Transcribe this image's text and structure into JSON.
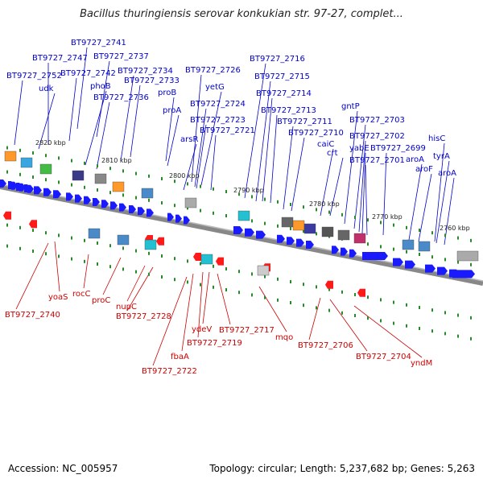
{
  "title": "Bacillus thuringiensis serovar konkukian str. 97-27, complet...",
  "footer": {
    "accession": "Accession: NC_005957",
    "topology": "Topology: circular; Length: 5,237,682 bp; Genes: 5,263"
  },
  "colors": {
    "forward": "#0000cc",
    "reverse": "#cc0000",
    "axis": "#888888",
    "gene_blue": "#1a1aff",
    "gene_red": "#ff1a1a",
    "tick": "#2a8a2a"
  },
  "kbp_labels": [
    "2820 kbp",
    "2810 kbp",
    "2800 kbp",
    "2790 kbp",
    "2780 kbp",
    "2770 kbp",
    "2760 kbp"
  ],
  "forward_labels": [
    "BT9727_2741",
    "BT9727_2747",
    "BT9727_2737",
    "BT9727_2752",
    "BT9727_2742",
    "BT9727_2734",
    "udk",
    "phoB",
    "BT9727_2733",
    "BT9727_2736",
    "proB",
    "proA",
    "BT9727_2726",
    "yetG",
    "BT9727_2724",
    "BT9727_2723",
    "BT9727_2721",
    "arsR",
    "BT9727_2716",
    "BT9727_2715",
    "BT9727_2714",
    "BT9727_2713",
    "BT9727_2711",
    "BT9727_2710",
    "caiC",
    "crt",
    "gntP",
    "BT9727_2703",
    "BT9727_2702",
    "yabE",
    "BT9727_2699",
    "BT9727_2701",
    "hisC",
    "tyrA",
    "aroA",
    "aroF",
    "aroA"
  ],
  "reverse_labels": [
    "BT9727_2740",
    "yoaS",
    "rocC",
    "proC",
    "nupC",
    "BT9727_2728",
    "ydeV",
    "BT9727_2719",
    "fbaA",
    "BT9727_2722",
    "BT9727_2717",
    "mqo",
    "BT9727_2706",
    "BT9727_2704",
    "yndM"
  ]
}
